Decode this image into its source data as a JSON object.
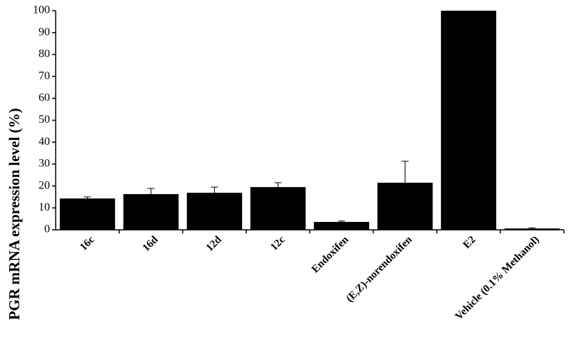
{
  "chart_data": {
    "type": "bar",
    "y_label": "PGR mRNA expression level (%)",
    "categories": [
      "16c",
      "16d",
      "12d",
      "12c",
      "Endoxifen",
      "(E,Z)-norendoxifen",
      "E2",
      "Vehicle (0.1% Methanol)"
    ],
    "values": [
      14.3,
      16.3,
      16.9,
      19.5,
      3.6,
      21.5,
      100,
      0.6
    ],
    "errors": [
      0.7,
      2.6,
      2.6,
      2.0,
      0.4,
      9.8,
      0,
      0.3
    ],
    "color": "#000000",
    "ylim": [
      0,
      100
    ],
    "yticks": [
      0,
      10,
      20,
      30,
      40,
      50,
      60,
      70,
      80,
      90,
      100
    ],
    "grid": false
  }
}
